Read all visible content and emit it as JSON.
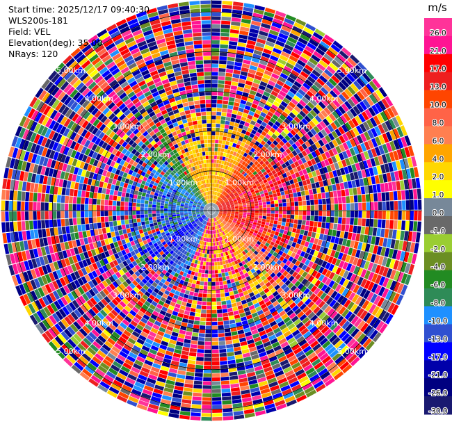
{
  "info": {
    "start_time": "Start time: 2025/12/17 09:40:30",
    "station": "WLS200s-181",
    "field": "Field: VEL",
    "elevation": "Elevation(deg): 35.00",
    "nrays": "NRays: 120"
  },
  "chart_data": {
    "type": "heatmap",
    "projection": "polar-ppi",
    "field": "VEL",
    "n_rays": 120,
    "range_rings_km": [
      1,
      2,
      3,
      4,
      5
    ],
    "ring_labels": [
      "1.00km",
      "2.00km",
      "3.00km",
      "4.00km",
      "5.00km"
    ],
    "colorbar": {
      "unit": "m/s",
      "ticks": [
        "26.0",
        "21.0",
        "17.0",
        "13.0",
        "10.0",
        "8.0",
        "6.0",
        "4.0",
        "2.0",
        "1.0",
        "0.0",
        "-1.0",
        "-2.0",
        "-4.0",
        "-6.0",
        "-8.0",
        "-10.0",
        "-13.0",
        "-17.0",
        "-21.0",
        "-26.0",
        "-30.0"
      ],
      "colors": [
        "#ff3399",
        "#ff1493",
        "#ff0000",
        "#ee1f1f",
        "#ff4500",
        "#ff6347",
        "#ff7f50",
        "#ffa500",
        "#ffd700",
        "#ffff00",
        "#778899",
        "#696969",
        "#9acd32",
        "#6b8e23",
        "#228b22",
        "#2e8b57",
        "#1e90ff",
        "#3050d0",
        "#0000ff",
        "#0000aa",
        "#000080",
        "#191970"
      ]
    },
    "near_field_pattern": {
      "east_sector": "positive (red/orange/pink, 6 to 26 m/s)",
      "north_sector": "yellow/orange (2 to 6 m/s)",
      "west_sector": "negative (green/blue, -4 to -13 m/s)",
      "south_sector": "yellow/pink mix",
      "far_range": "noisy, all colours"
    }
  }
}
